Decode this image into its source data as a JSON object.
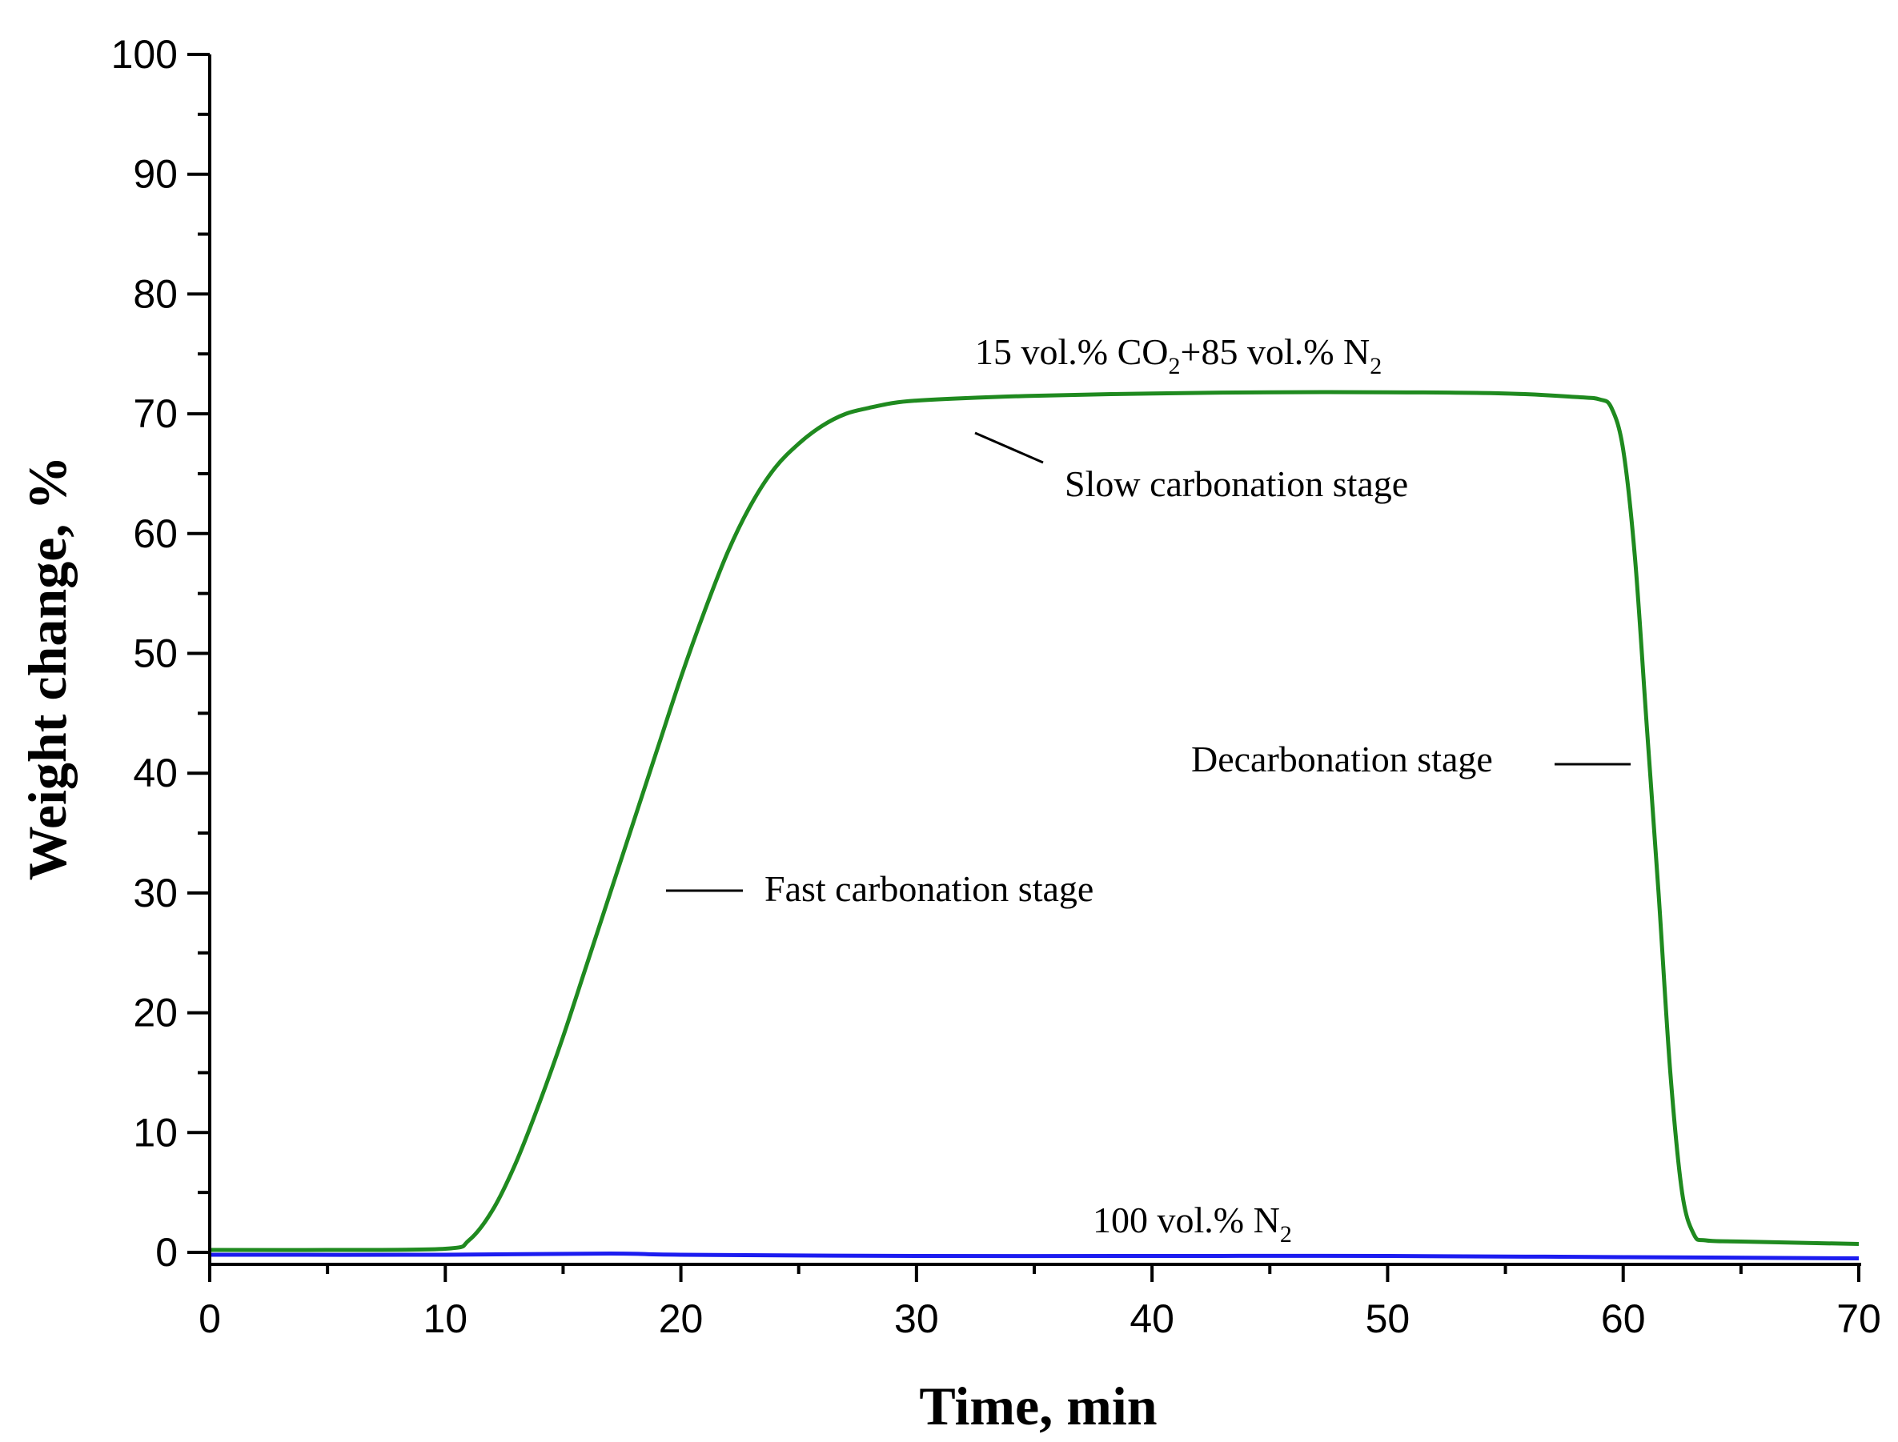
{
  "chart_data": {
    "type": "line",
    "xlabel": "Time, min",
    "ylabel": "Weight change, %",
    "xlim": [
      0,
      70
    ],
    "ylim": [
      0,
      100
    ],
    "x_ticks": [
      0,
      10,
      20,
      30,
      40,
      50,
      60,
      70
    ],
    "y_ticks": [
      0,
      10,
      20,
      30,
      40,
      50,
      60,
      70,
      80,
      90,
      100
    ],
    "grid": false,
    "series": [
      {
        "name": "15 vol.% CO2+85 vol.% N2",
        "color": "#1f8a1f",
        "x": [
          0,
          5,
          10,
          11,
          12,
          13,
          14,
          15,
          16,
          17,
          18,
          19,
          20,
          21,
          22,
          23,
          24,
          25,
          26,
          27,
          28,
          29,
          30,
          32,
          35,
          40,
          45,
          50,
          55,
          58,
          59,
          59.5,
          60,
          60.5,
          61,
          61.5,
          62,
          62.5,
          63,
          63.5,
          65,
          70
        ],
        "y": [
          0.2,
          0.2,
          0.3,
          1.0,
          3.5,
          7.5,
          12.5,
          18.0,
          24.0,
          30.0,
          36.0,
          42.0,
          48.0,
          53.5,
          58.5,
          62.5,
          65.5,
          67.5,
          69.0,
          70.0,
          70.5,
          70.9,
          71.1,
          71.3,
          71.5,
          71.7,
          71.8,
          71.8,
          71.7,
          71.4,
          71.2,
          70.5,
          67.0,
          58.0,
          44.0,
          30.0,
          15.0,
          5.0,
          1.5,
          1.0,
          0.9,
          0.7
        ]
      },
      {
        "name": "100 vol.% N2",
        "color": "#1c1cf0",
        "x": [
          0,
          10,
          17,
          20,
          30,
          40,
          50,
          60,
          70
        ],
        "y": [
          -0.2,
          -0.2,
          -0.1,
          -0.2,
          -0.3,
          -0.3,
          -0.3,
          -0.4,
          -0.5
        ]
      }
    ],
    "annotations": {
      "co2_label": {
        "main": "15 vol.% CO",
        "sub1": "2",
        "mid": "+85 vol.% N",
        "sub2": "2"
      },
      "n2_label": {
        "main": "100 vol.% N",
        "sub": "2"
      },
      "slow": "Slow carbonation stage",
      "fast": "Fast carbonation stage",
      "decarb": "Decarbonation stage"
    }
  }
}
